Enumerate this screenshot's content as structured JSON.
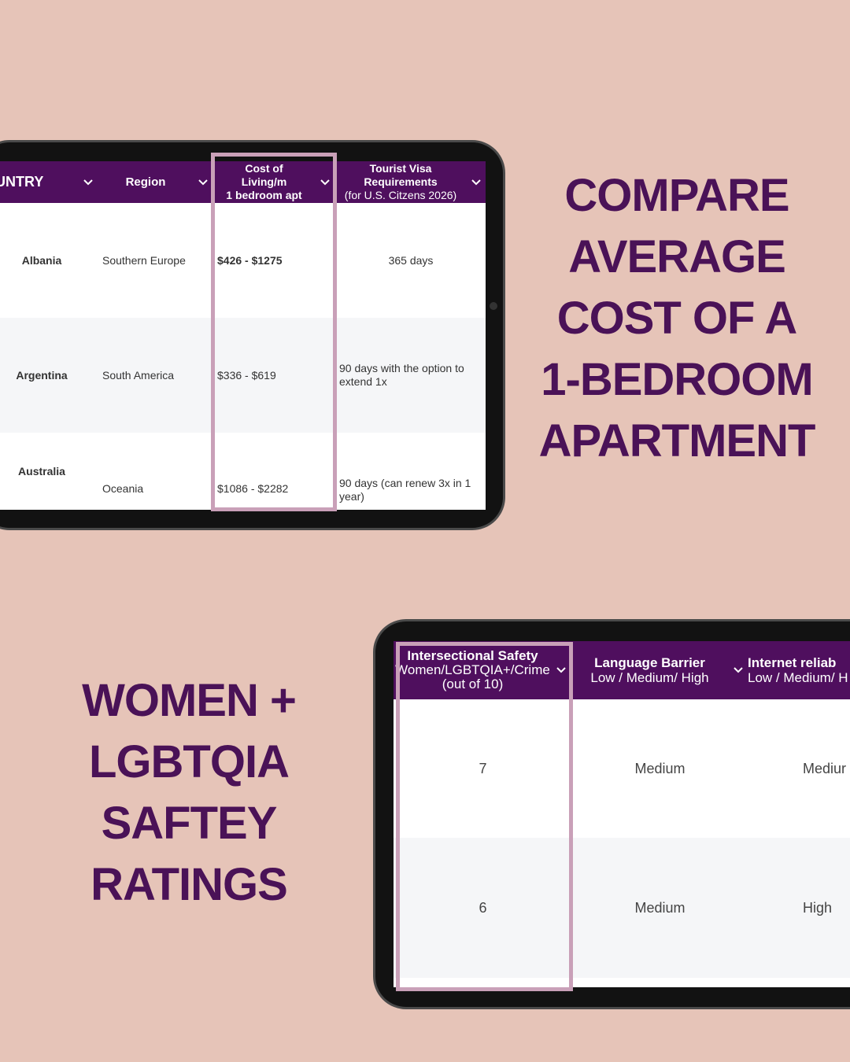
{
  "headline_top": {
    "lines": [
      "COMPARE",
      "AVERAGE",
      "COST OF A",
      "1-BEDROOM",
      "APARTMENT"
    ]
  },
  "headline_bottom": {
    "lines": [
      "WOMEN +",
      "LGBTQIA",
      "SAFTEY",
      "RATINGS"
    ]
  },
  "table_top": {
    "headers": [
      [
        "OUNTRY"
      ],
      [
        "Region"
      ],
      [
        "Cost of",
        "Living/m",
        "1 bedroom apt"
      ],
      [
        "Tourist Visa",
        "Requirements",
        "(for U.S. Citzens 2026)"
      ]
    ],
    "rows": [
      [
        "Albania",
        "Southern Europe",
        "$426 - $1275",
        "365 days"
      ],
      [
        "Argentina",
        "South America",
        "$336 - $619",
        "90 days with the option to extend 1x"
      ],
      [
        "Australia",
        "Oceania",
        "$1086 - $2282",
        "90 days (can renew 3x in 1 year)"
      ]
    ]
  },
  "table_bottom": {
    "headers": [
      [
        "Intersectional Safety",
        "Women/LGBTQIA+/Crime",
        "(out of 10)"
      ],
      [
        "Language Barrier",
        "Low / Medium/ High"
      ],
      [
        "Internet reliab",
        "Low / Medium/ H"
      ]
    ],
    "rows": [
      [
        "7",
        "Medium",
        "Mediur"
      ],
      [
        "6",
        "Medium",
        "High"
      ]
    ]
  }
}
